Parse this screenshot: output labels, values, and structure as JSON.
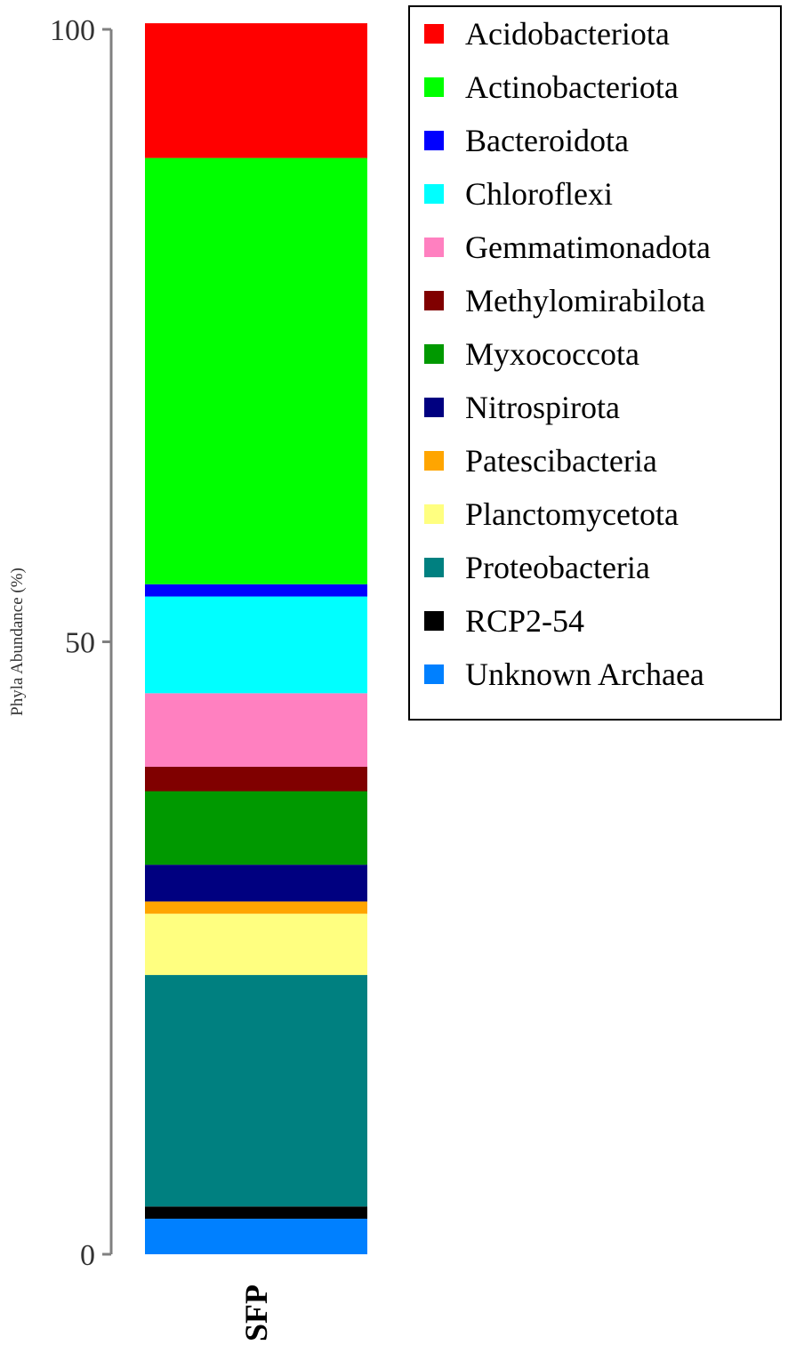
{
  "chart_data": {
    "type": "bar",
    "stacked": true,
    "percent": true,
    "categories": [
      "SFP"
    ],
    "ylabel": "Phyla Abundance (%)",
    "ylim": [
      0,
      100
    ],
    "yticks": [
      0,
      50,
      100
    ],
    "legend_position": "top-right",
    "series": [
      {
        "name": "Acidobacteriota",
        "color": "#ff0000",
        "values": [
          11.0
        ]
      },
      {
        "name": "Actinobacteriota",
        "color": "#00ff00",
        "values": [
          34.8
        ]
      },
      {
        "name": "Bacteroidota",
        "color": "#0000ff",
        "values": [
          1.0
        ]
      },
      {
        "name": "Chloroflexi",
        "color": "#00ffff",
        "values": [
          7.9
        ]
      },
      {
        "name": "Gemmatimonadota",
        "color": "#ff80c0",
        "values": [
          6.0
        ]
      },
      {
        "name": "Methylomirabilota",
        "color": "#800000",
        "values": [
          2.0
        ]
      },
      {
        "name": "Myxococcota",
        "color": "#009900",
        "values": [
          6.0
        ]
      },
      {
        "name": "Nitrospirota",
        "color": "#000080",
        "values": [
          3.0
        ]
      },
      {
        "name": "Patescibacteria",
        "color": "#ffa500",
        "values": [
          1.0
        ]
      },
      {
        "name": "Planctomycetota",
        "color": "#ffff80",
        "values": [
          5.0
        ]
      },
      {
        "name": "Proteobacteria",
        "color": "#008080",
        "values": [
          18.9
        ]
      },
      {
        "name": "RCP2-54",
        "color": "#000000",
        "values": [
          1.0
        ]
      },
      {
        "name": "Unknown Archaea",
        "color": "#0080ff",
        "values": [
          2.9
        ]
      }
    ]
  }
}
